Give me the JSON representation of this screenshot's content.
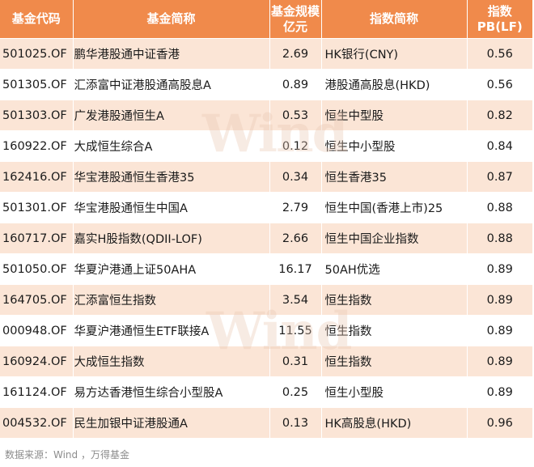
{
  "headers": {
    "code": "基金代码",
    "name": "基金简称",
    "size_line1": "基金规模",
    "size_line2": "亿元",
    "index": "指数简称",
    "pb_line1": "指数",
    "pb_line2": "PB(LF)"
  },
  "rows": [
    {
      "code": "501025.OF",
      "name": "鹏华港股通中证香港",
      "size": "2.69",
      "index": "HK银行(CNY)",
      "pb": "0.56"
    },
    {
      "code": "501305.OF",
      "name": "汇添富中证港股通高股息A",
      "size": "0.89",
      "index": "港股通高股息(HKD)",
      "pb": "0.56"
    },
    {
      "code": "501303.OF",
      "name": "广发港股通恒生A",
      "size": "0.53",
      "index": "恒生中型股",
      "pb": "0.82"
    },
    {
      "code": "160922.OF",
      "name": "大成恒生综合A",
      "size": "0.12",
      "index": "恒生中小型股",
      "pb": "0.84"
    },
    {
      "code": "162416.OF",
      "name": "华宝港股通恒生香港35",
      "size": "0.34",
      "index": "恒生香港35",
      "pb": "0.87"
    },
    {
      "code": "501301.OF",
      "name": "华宝港股通恒生中国A",
      "size": "2.79",
      "index": "恒生中国(香港上市)25",
      "pb": "0.88"
    },
    {
      "code": "160717.OF",
      "name": "嘉实H股指数(QDII-LOF)",
      "size": "2.66",
      "index": "恒生中国企业指数",
      "pb": "0.88"
    },
    {
      "code": "501050.OF",
      "name": "华夏沪港通上证50AHA",
      "size": "16.17",
      "index": "50AH优选",
      "pb": "0.89"
    },
    {
      "code": "164705.OF",
      "name": "汇添富恒生指数",
      "size": "3.54",
      "index": "恒生指数",
      "pb": "0.89"
    },
    {
      "code": "000948.OF",
      "name": "华夏沪港通恒生ETF联接A",
      "size": "11.55",
      "index": "恒生指数",
      "pb": "0.89"
    },
    {
      "code": "160924.OF",
      "name": "大成恒生指数",
      "size": "0.31",
      "index": "恒生指数",
      "pb": "0.89"
    },
    {
      "code": "161124.OF",
      "name": "易方达香港恒生综合小型股A",
      "size": "0.25",
      "index": "恒生小型股",
      "pb": "0.89"
    },
    {
      "code": "004532.OF",
      "name": "民生加银中证港股通A",
      "size": "0.13",
      "index": "HK高股息(HKD)",
      "pb": "0.96"
    }
  ],
  "watermark": "Wind",
  "source": "数据来源：Wind ，万得基金",
  "colors": {
    "header": "#f08a4b",
    "band": "#fbe5d6"
  }
}
